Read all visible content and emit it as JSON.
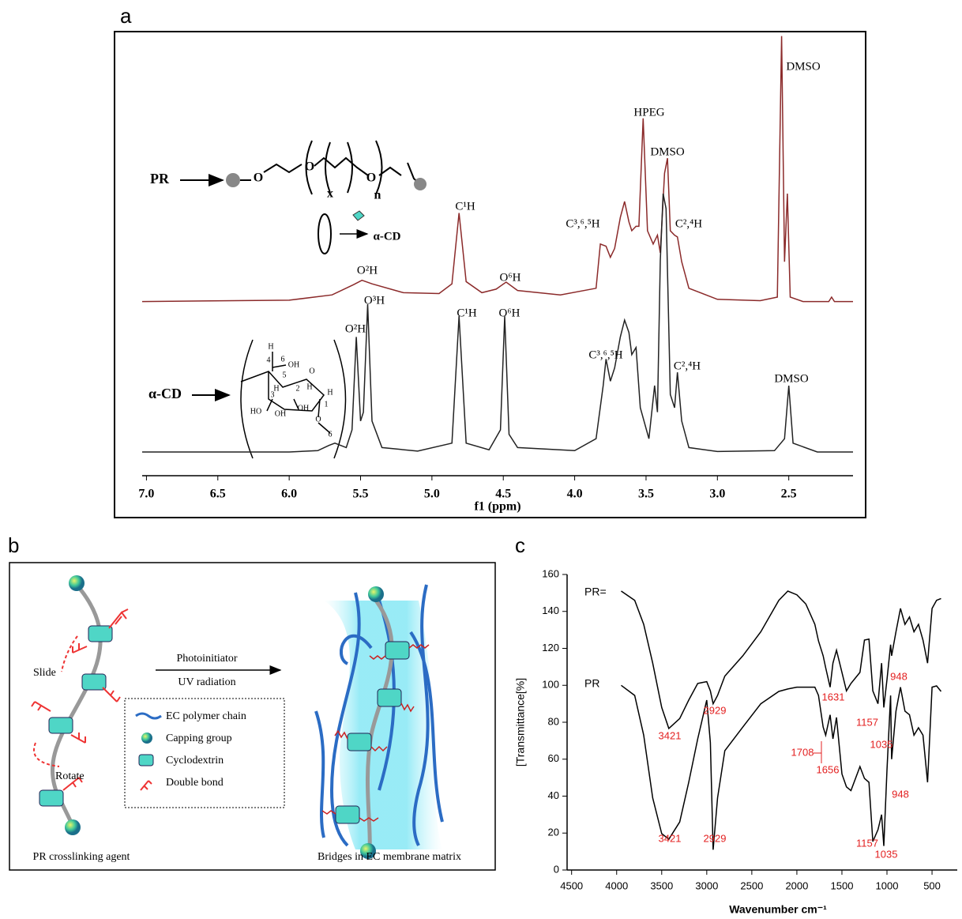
{
  "panel_labels": [
    "a",
    "b",
    "c"
  ],
  "chart_data": [
    {
      "type": "line",
      "xlabel": "f1 (ppm)",
      "xlim": [
        7.03,
        2.05
      ],
      "xticks": [
        {
          "value": 7,
          "label": "7.0"
        },
        {
          "value": 6.5,
          "label": "6.5"
        },
        {
          "value": 6,
          "label": "6.0"
        },
        {
          "value": 5.5,
          "label": "5.5"
        },
        {
          "value": 5,
          "label": "5.0"
        },
        {
          "value": 4.5,
          "label": "4.5"
        },
        {
          "value": 4,
          "label": "4.0"
        },
        {
          "value": 3.5,
          "label": "3.5"
        },
        {
          "value": 3,
          "label": "3.0"
        },
        {
          "value": 2.5,
          "label": "2.5"
        }
      ],
      "ylim": [
        0,
        100
      ],
      "series": [
        {
          "name": "PR",
          "color": "#8b2a2a",
          "x": [
            7.03,
            6.0,
            5.7,
            5.55,
            5.49,
            5.42,
            5.2,
            4.95,
            4.86,
            4.81,
            4.76,
            4.65,
            4.55,
            4.48,
            4.4,
            4.1,
            3.85,
            3.82,
            3.78,
            3.75,
            3.72,
            3.68,
            3.65,
            3.62,
            3.6,
            3.57,
            3.55,
            3.52,
            3.49,
            3.45,
            3.42,
            3.4,
            3.37,
            3.35,
            3.33,
            3.3,
            3.28,
            3.25,
            3.2,
            3.0,
            2.7,
            2.58,
            2.55,
            2.53,
            2.51,
            2.49,
            2.4,
            2.22,
            2.2,
            2.18,
            2.05
          ],
          "values": [
            39,
            39.3,
            40.5,
            42.8,
            43.8,
            43,
            41,
            40.8,
            43,
            59,
            43.5,
            41,
            41.8,
            43.4,
            41.5,
            40.5,
            42,
            52,
            51.5,
            49,
            51,
            58,
            61.6,
            57,
            55,
            56,
            56,
            80.4,
            55,
            52,
            54,
            50,
            68,
            71.4,
            55,
            54,
            53.6,
            48,
            42,
            39.5,
            39.2,
            40,
            99,
            48,
            63.4,
            40,
            39,
            39,
            40,
            39,
            39
          ]
        },
        {
          "name": "α-CD",
          "color": "#222222",
          "x": [
            7.03,
            6.0,
            5.8,
            5.72,
            5.68,
            5.6,
            5.56,
            5.53,
            5.5,
            5.48,
            5.45,
            5.42,
            5.35,
            5.1,
            4.86,
            4.81,
            4.76,
            4.6,
            4.52,
            4.49,
            4.46,
            4.4,
            4.0,
            3.85,
            3.8,
            3.78,
            3.75,
            3.72,
            3.68,
            3.65,
            3.62,
            3.6,
            3.57,
            3.54,
            3.48,
            3.44,
            3.42,
            3.4,
            3.38,
            3.36,
            3.33,
            3.3,
            3.28,
            3.25,
            3.2,
            3.0,
            2.6,
            2.53,
            2.5,
            2.47,
            2.3,
            2.05
          ],
          "values": [
            5,
            5,
            5.3,
            6.5,
            7,
            6,
            10,
            31,
            12,
            14,
            38.4,
            12,
            6,
            5.2,
            7,
            35.7,
            7,
            5.5,
            10,
            35.7,
            9,
            6,
            5.3,
            8,
            20,
            26,
            21,
            24,
            31,
            34.8,
            32,
            27,
            28.6,
            15,
            8,
            20,
            14,
            48.2,
            63.4,
            60,
            18,
            15,
            23,
            12,
            6,
            5.1,
            5.3,
            8,
            20,
            7,
            5,
            5
          ]
        }
      ],
      "annotations": [
        "DMSO",
        "HPEG",
        "DMSO",
        "C¹H",
        "C³,⁶,⁵H",
        "C²,⁴H",
        "O²H",
        "O⁶H",
        "O³H",
        "O²H",
        "C¹H",
        "O⁶H",
        "C³,⁶,⁵H",
        "C²,⁴H",
        "DMSO",
        "α-CD"
      ],
      "structure_labels": [
        "O",
        "O",
        "O",
        "x",
        "n",
        "H",
        "4",
        "6",
        "OH",
        "5",
        "O",
        "H",
        "3",
        "2",
        "H",
        "OH",
        "H",
        "HO",
        "OH",
        "1",
        "O",
        "6"
      ]
    },
    {
      "type": "line",
      "xlabel": "Wavenumber cm⁻¹",
      "ylabel": "[Transmittance[%]",
      "xlim": [
        4550,
        220
      ],
      "xticks": [
        4500,
        4000,
        3500,
        3000,
        2500,
        2000,
        1500,
        1000,
        500
      ],
      "ylim": [
        0,
        160
      ],
      "yticks": [
        0,
        20,
        40,
        60,
        80,
        100,
        120,
        140,
        160
      ],
      "series": [
        {
          "name": "PR=",
          "color": "#000000",
          "x": [
            3950,
            3800,
            3700,
            3600,
            3500,
            3421,
            3300,
            3200,
            3100,
            3000,
            2960,
            2929,
            2880,
            2800,
            2600,
            2400,
            2200,
            2100,
            2000,
            1900,
            1800,
            1760,
            1708,
            1680,
            1631,
            1600,
            1560,
            1500,
            1450,
            1400,
            1300,
            1250,
            1200,
            1157,
            1100,
            1060,
            1035,
            1000,
            960,
            948,
            900,
            850,
            800,
            750,
            700,
            650,
            600,
            550,
            500,
            450,
            400
          ],
          "values": [
            151,
            146,
            133,
            112,
            88,
            76.6,
            82,
            92,
            101,
            102,
            97,
            90,
            94.5,
            105,
            116,
            129,
            146,
            151,
            149,
            144,
            133,
            124,
            116,
            109.5,
            99,
            112,
            119,
            107,
            97,
            101,
            107,
            124.5,
            125,
            97,
            90,
            112,
            88,
            103,
            122,
            116,
            129,
            141.6,
            133,
            137,
            129,
            133,
            124.5,
            112,
            141.6,
            146,
            147
          ]
        },
        {
          "name": "PR",
          "color": "#000000",
          "x": [
            3950,
            3800,
            3700,
            3600,
            3500,
            3421,
            3300,
            3200,
            3100,
            3000,
            2960,
            2929,
            2880,
            2800,
            2600,
            2400,
            2200,
            2100,
            2000,
            1900,
            1800,
            1760,
            1708,
            1680,
            1631,
            1600,
            1560,
            1500,
            1450,
            1400,
            1300,
            1250,
            1200,
            1157,
            1100,
            1060,
            1035,
            1000,
            960,
            948,
            900,
            850,
            800,
            750,
            700,
            650,
            600,
            550,
            500,
            450,
            400
          ],
          "values": [
            100,
            94.5,
            73,
            39,
            19.7,
            16.7,
            26,
            47.5,
            71,
            92,
            69,
            11,
            39,
            64.6,
            77.4,
            90,
            96.7,
            98,
            99,
            99,
            99,
            94.5,
            77.4,
            73,
            84,
            71,
            82.6,
            52,
            45,
            43,
            56,
            49.6,
            47.5,
            15.4,
            21.8,
            30,
            13,
            54,
            94.5,
            60,
            86,
            99,
            86,
            84,
            73,
            77,
            73,
            47.5,
            99,
            99.7,
            96.7
          ]
        }
      ],
      "annotations": [
        "3421",
        "2929",
        "1631",
        "1157",
        "1035",
        "948",
        "3421",
        "2929",
        "1708",
        "1656",
        "1157",
        "1035",
        "948"
      ]
    }
  ],
  "diagram": {
    "slide": "Slide",
    "rotate": "Rotate",
    "arrow_top": "Photoinitiator",
    "arrow_bottom": "UV radiation",
    "legend": [
      "EC polymer chain",
      "Capping group",
      "Cyclodextrin",
      "Double bond"
    ],
    "left_caption": "PR crosslinking agent",
    "right_caption": "Bridges in EC membrane matrix"
  }
}
